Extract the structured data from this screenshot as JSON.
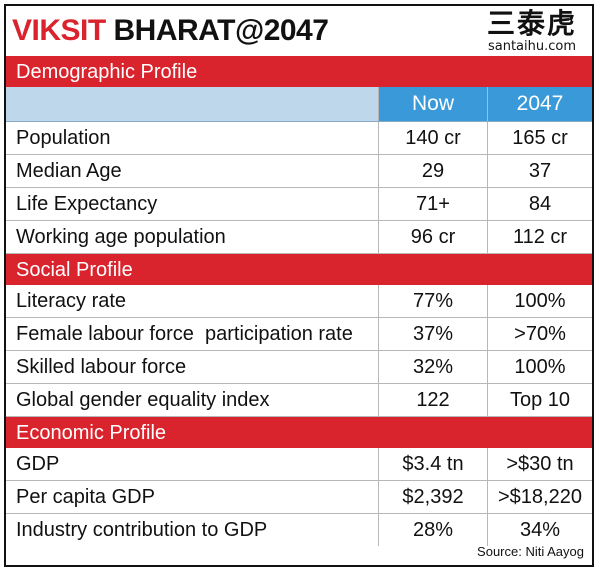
{
  "header": {
    "title_part1": "VIKSIT ",
    "title_part2": "BHARAT@2047",
    "logo_text": "三泰虎",
    "logo_url": "santaihu.com"
  },
  "columns": {
    "now": "Now",
    "future": "2047"
  },
  "sections": [
    {
      "title": "Demographic Profile",
      "rows": [
        {
          "label": "Population",
          "now": "140 cr",
          "future": "165 cr"
        },
        {
          "label": "Median Age",
          "now": "29",
          "future": "37"
        },
        {
          "label": "Life Expectancy",
          "now": "71+",
          "future": "84"
        },
        {
          "label": "Working age population",
          "now": "96 cr",
          "future": "112 cr"
        }
      ]
    },
    {
      "title": "Social Profile",
      "rows": [
        {
          "label": "Literacy rate",
          "now": "77%",
          "future": "100%"
        },
        {
          "label": "Female labour force  participation rate",
          "now": "37%",
          "future": ">70%"
        },
        {
          "label": "Skilled labour force",
          "now": "32%",
          "future": "100%"
        },
        {
          "label": "Global gender equality index",
          "now": "122",
          "future": "Top 10"
        }
      ]
    },
    {
      "title": "Economic Profile",
      "rows": [
        {
          "label": "GDP",
          "now": "$3.4 tn",
          "future": ">$30 tn"
        },
        {
          "label": "Per capita GDP",
          "now": "$2,392",
          "future": ">$18,220"
        },
        {
          "label": "Industry contribution to GDP",
          "now": "28%",
          "future": "34%"
        }
      ]
    }
  ],
  "source": "Source: Niti Aayog",
  "colors": {
    "accent_red": "#d9232d",
    "column_blue": "#3a9ad9",
    "header_light_blue": "#bfd7ea"
  }
}
